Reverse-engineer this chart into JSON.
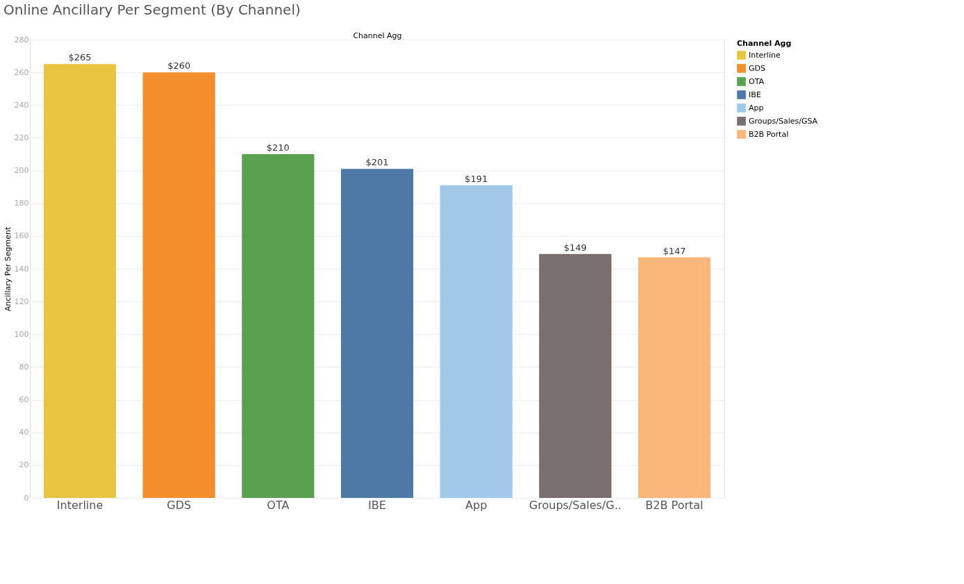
{
  "chart_data": {
    "type": "bar",
    "title": "Online Ancillary Per Segment (By Channel)",
    "xlabel": "Channel Agg",
    "ylabel": "Ancillary Per Segment",
    "legend_title": "Channel Agg",
    "categories": [
      "Interline",
      "GDS",
      "OTA",
      "IBE",
      "App",
      "Groups/Sales/G..",
      "B2B Portal"
    ],
    "series": [
      {
        "name": "Interline",
        "color": "#e8c440",
        "values": [
          265,
          null,
          null,
          null,
          null,
          null,
          null
        ],
        "value_labels": [
          "$265",
          null,
          null,
          null,
          null,
          null,
          null
        ]
      },
      {
        "name": "GDS",
        "color": "#f28e2b",
        "values": [
          null,
          260,
          null,
          null,
          null,
          null,
          null
        ],
        "value_labels": [
          null,
          "$260",
          null,
          null,
          null,
          null,
          null
        ]
      },
      {
        "name": "OTA",
        "color": "#59a14f",
        "values": [
          null,
          null,
          210,
          null,
          null,
          null,
          null
        ],
        "value_labels": [
          null,
          null,
          "$210",
          null,
          null,
          null,
          null
        ]
      },
      {
        "name": "IBE",
        "color": "#4e79a7",
        "values": [
          null,
          null,
          null,
          201,
          null,
          null,
          null
        ],
        "value_labels": [
          null,
          null,
          null,
          "$201",
          null,
          null,
          null
        ]
      },
      {
        "name": "App",
        "color": "#a0c8e8",
        "values": [
          null,
          null,
          null,
          null,
          191,
          null,
          null
        ],
        "value_labels": [
          null,
          null,
          null,
          null,
          "$191",
          null,
          null
        ]
      },
      {
        "name": "Groups/Sales/GSA",
        "color": "#796f6e",
        "values": [
          null,
          null,
          null,
          null,
          null,
          149,
          null
        ],
        "value_labels": [
          null,
          null,
          null,
          null,
          null,
          "$149",
          null
        ]
      },
      {
        "name": "B2B Portal",
        "color": "#fbb77a",
        "values": [
          null,
          null,
          null,
          null,
          null,
          null,
          147
        ],
        "value_labels": [
          null,
          null,
          null,
          null,
          null,
          null,
          "$147"
        ]
      }
    ],
    "ylim": [
      0,
      280
    ],
    "yticks": [
      0,
      20,
      40,
      60,
      80,
      100,
      120,
      140,
      160,
      180,
      200,
      220,
      240,
      260,
      280
    ],
    "grid": "y",
    "legend": "top right"
  }
}
